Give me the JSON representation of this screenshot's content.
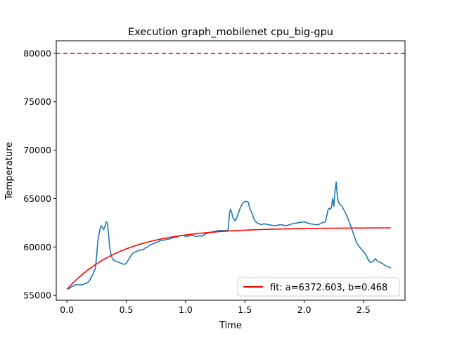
{
  "chart_data": {
    "type": "line",
    "title": "Execution graph_mobilenet cpu_big-gpu",
    "xlabel": "Time",
    "ylabel": "Temperature",
    "xlim": [
      -0.09,
      2.85
    ],
    "ylim": [
      54500,
      81300
    ],
    "x_ticks": [
      0.0,
      0.5,
      1.0,
      1.5,
      2.0,
      2.5
    ],
    "x_tick_labels": [
      "0.0",
      "0.5",
      "1.0",
      "1.5",
      "2.0",
      "2.5"
    ],
    "y_ticks": [
      55000,
      60000,
      65000,
      70000,
      75000,
      80000
    ],
    "y_tick_labels": [
      "55000",
      "60000",
      "65000",
      "70000",
      "75000",
      "80000"
    ],
    "grid": false,
    "legend_position": "lower right",
    "threshold": {
      "y": 80000,
      "color": "#ff0000",
      "style": "dashed"
    },
    "series": [
      {
        "kind": "measured",
        "color": "#1f77b4",
        "x": [
          0.0,
          0.02,
          0.04,
          0.06,
          0.07,
          0.09,
          0.11,
          0.13,
          0.15,
          0.17,
          0.19,
          0.2,
          0.22,
          0.24,
          0.25,
          0.26,
          0.27,
          0.28,
          0.29,
          0.3,
          0.31,
          0.32,
          0.33,
          0.34,
          0.35,
          0.36,
          0.37,
          0.38,
          0.39,
          0.4,
          0.42,
          0.44,
          0.46,
          0.48,
          0.5,
          0.52,
          0.54,
          0.56,
          0.58,
          0.6,
          0.62,
          0.64,
          0.66,
          0.68,
          0.7,
          0.72,
          0.74,
          0.76,
          0.78,
          0.8,
          0.82,
          0.84,
          0.86,
          0.88,
          0.9,
          0.92,
          0.94,
          0.96,
          0.98,
          1.0,
          1.02,
          1.04,
          1.06,
          1.08,
          1.1,
          1.12,
          1.14,
          1.16,
          1.18,
          1.2,
          1.24,
          1.28,
          1.32,
          1.35,
          1.36,
          1.37,
          1.38,
          1.39,
          1.4,
          1.42,
          1.44,
          1.46,
          1.48,
          1.5,
          1.52,
          1.53,
          1.54,
          1.56,
          1.58,
          1.6,
          1.62,
          1.64,
          1.66,
          1.7,
          1.75,
          1.8,
          1.85,
          1.9,
          1.95,
          2.0,
          2.05,
          2.1,
          2.12,
          2.15,
          2.18,
          2.2,
          2.21,
          2.22,
          2.23,
          2.24,
          2.25,
          2.26,
          2.27,
          2.28,
          2.29,
          2.3,
          2.32,
          2.34,
          2.36,
          2.38,
          2.4,
          2.42,
          2.44,
          2.46,
          2.48,
          2.5,
          2.52,
          2.54,
          2.56,
          2.58,
          2.6,
          2.62,
          2.64,
          2.66,
          2.68,
          2.7,
          2.72,
          2.73
        ],
        "y": [
          55700,
          55700,
          55900,
          56000,
          56100,
          56100,
          56100,
          56100,
          56200,
          56300,
          56500,
          56800,
          57200,
          57800,
          59000,
          60500,
          61300,
          61900,
          62200,
          62000,
          61800,
          62100,
          62600,
          62500,
          61500,
          60000,
          59300,
          58900,
          58700,
          58600,
          58500,
          58400,
          58300,
          58200,
          58300,
          58700,
          59100,
          59400,
          59500,
          59600,
          59700,
          59700,
          59900,
          60000,
          60200,
          60300,
          60400,
          60500,
          60600,
          60700,
          60700,
          60800,
          60800,
          60900,
          61000,
          61000,
          61100,
          61200,
          61200,
          61100,
          61100,
          61200,
          61200,
          61100,
          61100,
          61200,
          61100,
          61300,
          61400,
          61500,
          61600,
          61700,
          61700,
          61700,
          61800,
          63500,
          63900,
          63500,
          63000,
          62700,
          63300,
          64000,
          64500,
          64700,
          64700,
          64600,
          64000,
          63500,
          62800,
          62500,
          62400,
          62300,
          62400,
          62300,
          62200,
          62300,
          62200,
          62400,
          62500,
          62600,
          62400,
          62300,
          62300,
          62500,
          62600,
          63800,
          64000,
          63900,
          64100,
          65000,
          64200,
          65800,
          66700,
          65200,
          64600,
          64400,
          64200,
          63700,
          63200,
          62600,
          61900,
          61200,
          60500,
          60100,
          59800,
          59500,
          59200,
          58700,
          58400,
          58500,
          58800,
          58500,
          58400,
          58300,
          58100,
          58000,
          57900,
          57800
        ]
      },
      {
        "kind": "fit",
        "name": "fit: a=6372.603, b=0.468",
        "color": "#ff0000",
        "formula": {
          "type": "saturating_exponential",
          "y0": 55620,
          "a": 6372.603,
          "b": 0.468
        },
        "x_range": [
          0.0,
          2.73
        ]
      }
    ]
  }
}
